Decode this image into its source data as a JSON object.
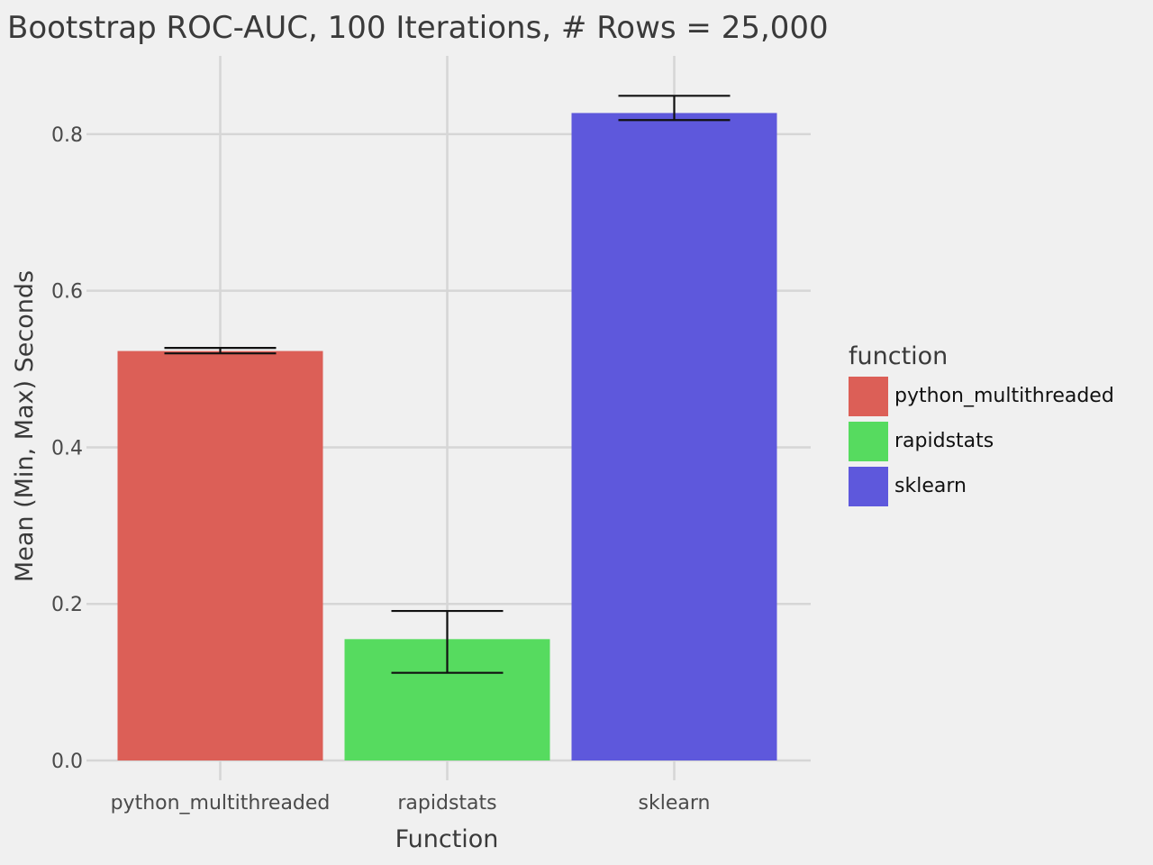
{
  "chart_data": {
    "type": "bar",
    "title": "Bootstrap ROC-AUC, 100 Iterations, # Rows = 25,000",
    "xlabel": "Function",
    "ylabel": "Mean (Min, Max) Seconds",
    "categories": [
      "python_multithreaded",
      "rapidstats",
      "sklearn"
    ],
    "values": [
      0.523,
      0.155,
      0.827
    ],
    "error_min": [
      0.52,
      0.112,
      0.818
    ],
    "error_max": [
      0.527,
      0.191,
      0.849
    ],
    "colors": [
      "#dc5f57",
      "#56db5f",
      "#5e58dc"
    ],
    "ylim": [
      -0.0,
      0.9
    ],
    "yticks": [
      0.0,
      0.2,
      0.4,
      0.6,
      0.8
    ],
    "ytick_labels": [
      "0.0",
      "0.2",
      "0.4",
      "0.6",
      "0.8"
    ],
    "grid": true,
    "legend": {
      "title": "function",
      "placement": "right",
      "entries": [
        "python_multithreaded",
        "rapidstats",
        "sklearn"
      ]
    }
  }
}
